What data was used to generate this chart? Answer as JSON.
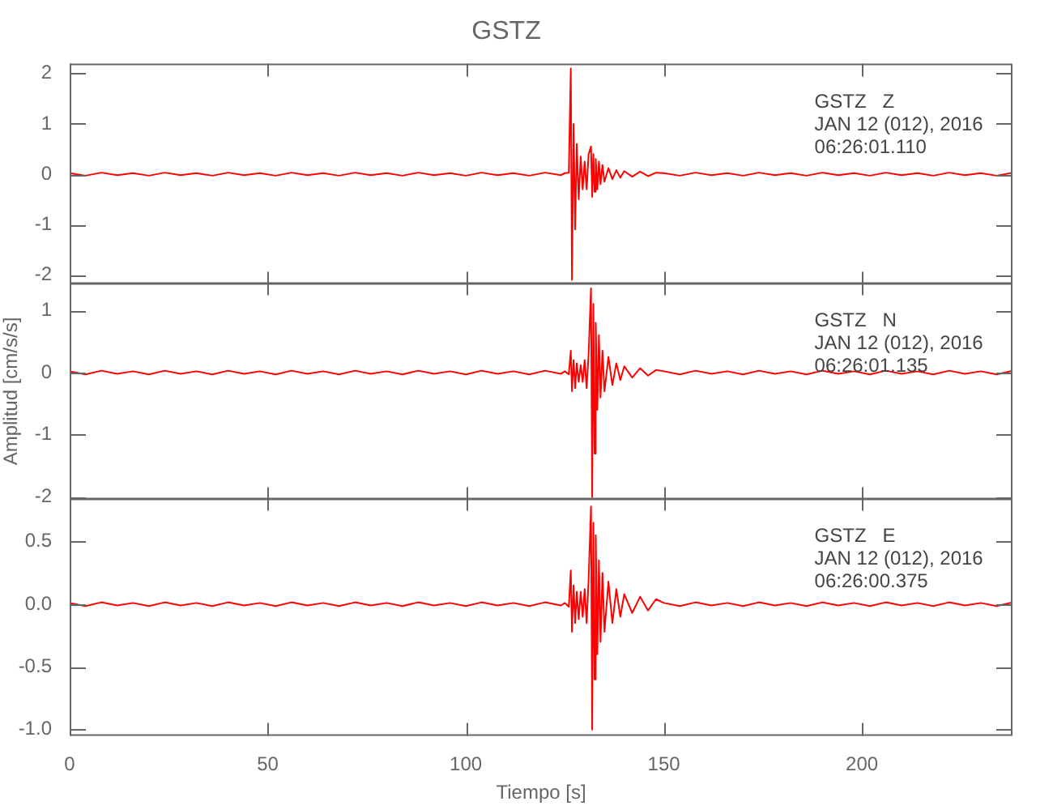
{
  "chart_data": [
    {
      "type": "line",
      "title": "GSTZ",
      "annotations": [
        "GSTZ   Z",
        "JAN 12 (012), 2016",
        "06:26:01.110"
      ],
      "x": [
        0,
        4,
        8,
        12,
        16,
        20,
        24,
        28,
        32,
        36,
        40,
        44,
        48,
        52,
        56,
        60,
        64,
        68,
        72,
        76,
        80,
        84,
        88,
        92,
        96,
        100,
        104,
        108,
        112,
        116,
        120,
        124,
        125,
        126,
        126.5,
        126.8,
        127.2,
        127.6,
        128,
        128.5,
        129,
        129.5,
        130,
        130.5,
        131,
        131.6,
        131.9,
        132.2,
        132.5,
        132.8,
        133.2,
        133.6,
        134,
        134.5,
        135,
        136,
        137,
        138,
        139,
        140,
        142,
        144,
        146,
        148,
        150,
        154,
        158,
        162,
        166,
        170,
        174,
        178,
        182,
        186,
        190,
        194,
        198,
        202,
        206,
        210,
        214,
        218,
        222,
        226,
        230,
        234,
        238
      ],
      "series": [
        {
          "color": "#ff0000",
          "values": [
            0.02,
            -0.03,
            0.03,
            -0.02,
            0.02,
            -0.03,
            0.03,
            -0.02,
            0.02,
            -0.03,
            0.03,
            -0.02,
            0.02,
            -0.03,
            0.03,
            -0.02,
            0.02,
            -0.03,
            0.03,
            -0.02,
            0.02,
            -0.03,
            0.03,
            -0.02,
            0.02,
            -0.03,
            0.03,
            -0.02,
            0.02,
            -0.03,
            0.03,
            -0.02,
            0.02,
            0.03,
            2.1,
            -2.1,
            1.0,
            -1.1,
            0.6,
            -0.5,
            0.35,
            -0.3,
            0.25,
            -0.3,
            0.4,
            0.55,
            -0.45,
            0.4,
            -0.35,
            0.3,
            -0.3,
            0.25,
            -0.2,
            0.18,
            -0.15,
            0.12,
            -0.1,
            0.08,
            -0.07,
            0.06,
            -0.05,
            0.05,
            -0.04,
            0.03,
            0.02,
            -0.03,
            0.03,
            -0.02,
            0.02,
            -0.03,
            0.03,
            -0.02,
            0.02,
            -0.03,
            0.03,
            -0.02,
            0.02,
            -0.03,
            0.03,
            -0.02,
            0.02,
            -0.03,
            0.03,
            -0.02,
            0.02,
            -0.03,
            0.03
          ]
        }
      ],
      "xlim": [
        0,
        238
      ],
      "xticks": [
        0,
        50,
        100,
        150,
        200
      ],
      "ylim": [
        -2.2,
        2.2
      ],
      "yticks": [
        -2,
        -1,
        0,
        1,
        2
      ],
      "tick_labels": "y"
    },
    {
      "type": "line",
      "ylabel": "Amplitud [cm/s/s]",
      "annotations": [
        "GSTZ   N",
        "JAN 12 (012), 2016",
        "06:26:01.135"
      ],
      "x": [
        0,
        4,
        8,
        12,
        16,
        20,
        24,
        28,
        32,
        36,
        40,
        44,
        48,
        52,
        56,
        60,
        64,
        68,
        72,
        76,
        80,
        84,
        88,
        92,
        96,
        100,
        104,
        108,
        112,
        116,
        120,
        124,
        125,
        126,
        126.5,
        126.8,
        127.2,
        127.6,
        128,
        128.5,
        129,
        129.5,
        130,
        130.5,
        131,
        131.6,
        131.9,
        132.2,
        132.5,
        132.8,
        133.2,
        133.6,
        134,
        134.5,
        135,
        136,
        137,
        138,
        139,
        140,
        142,
        144,
        146,
        148,
        150,
        154,
        158,
        162,
        166,
        170,
        174,
        178,
        182,
        186,
        190,
        194,
        198,
        202,
        206,
        210,
        214,
        218,
        222,
        226,
        230,
        234,
        238
      ],
      "series": [
        {
          "color": "#ff0000",
          "values": [
            0.02,
            -0.03,
            0.03,
            -0.02,
            0.02,
            -0.03,
            0.03,
            -0.02,
            0.02,
            -0.03,
            0.03,
            -0.02,
            0.02,
            -0.03,
            0.03,
            -0.02,
            0.02,
            -0.03,
            0.03,
            -0.02,
            0.02,
            -0.03,
            0.03,
            -0.02,
            0.02,
            -0.03,
            0.03,
            -0.02,
            0.02,
            -0.03,
            0.03,
            -0.02,
            0.02,
            -0.03,
            0.35,
            -0.3,
            0.2,
            -0.25,
            0.15,
            -0.15,
            0.12,
            -0.15,
            0.2,
            -0.25,
            0.3,
            1.35,
            -2.0,
            1.1,
            -1.3,
            0.8,
            -0.6,
            0.6,
            -0.4,
            0.35,
            -0.3,
            0.25,
            -0.2,
            0.15,
            -0.12,
            0.1,
            -0.08,
            0.07,
            -0.05,
            0.04,
            0.02,
            -0.03,
            0.03,
            -0.02,
            0.02,
            -0.03,
            0.03,
            -0.02,
            0.02,
            -0.03,
            0.03,
            -0.02,
            0.02,
            -0.03,
            0.03,
            -0.02,
            0.02,
            -0.03,
            0.03,
            -0.02,
            0.02,
            -0.03,
            0.03
          ]
        }
      ],
      "xlim": [
        0,
        238
      ],
      "xticks": [
        0,
        50,
        100,
        150,
        200
      ],
      "ylim": [
        -2.05,
        1.45
      ],
      "yticks": [
        -2,
        -1,
        0,
        1
      ],
      "tick_labels": "y"
    },
    {
      "type": "line",
      "xlabel": "Tiempo [s]",
      "annotations": [
        "GSTZ   E",
        "JAN 12 (012), 2016",
        "06:26:00.375"
      ],
      "x": [
        0,
        4,
        8,
        12,
        16,
        20,
        24,
        28,
        32,
        36,
        40,
        44,
        48,
        52,
        56,
        60,
        64,
        68,
        72,
        76,
        80,
        84,
        88,
        92,
        96,
        100,
        104,
        108,
        112,
        116,
        120,
        124,
        125,
        126,
        126.5,
        126.8,
        127.2,
        127.6,
        128,
        128.5,
        129,
        129.5,
        130,
        130.5,
        131,
        131.6,
        131.9,
        132.2,
        132.5,
        132.8,
        133.2,
        133.6,
        134,
        134.5,
        135,
        136,
        137,
        138,
        139,
        140,
        142,
        144,
        146,
        148,
        150,
        154,
        158,
        162,
        166,
        170,
        174,
        178,
        182,
        186,
        190,
        194,
        198,
        202,
        206,
        210,
        214,
        218,
        222,
        226,
        230,
        234,
        238
      ],
      "series": [
        {
          "color": "#ff0000",
          "values": [
            0.01,
            -0.015,
            0.015,
            -0.01,
            0.01,
            -0.015,
            0.015,
            -0.01,
            0.01,
            -0.015,
            0.015,
            -0.01,
            0.01,
            -0.015,
            0.015,
            -0.01,
            0.01,
            -0.015,
            0.015,
            -0.01,
            0.01,
            -0.015,
            0.015,
            -0.01,
            0.01,
            -0.015,
            0.015,
            -0.01,
            0.01,
            -0.015,
            0.015,
            -0.01,
            0.01,
            -0.02,
            0.27,
            -0.22,
            0.15,
            -0.15,
            0.1,
            -0.12,
            0.1,
            -0.1,
            0.12,
            -0.15,
            0.2,
            0.78,
            -1.0,
            0.65,
            -0.6,
            0.55,
            -0.4,
            0.35,
            -0.3,
            0.25,
            -0.22,
            0.18,
            -0.15,
            0.12,
            -0.1,
            0.08,
            -0.07,
            0.06,
            -0.05,
            0.04,
            0.01,
            -0.015,
            0.015,
            -0.01,
            0.01,
            -0.015,
            0.015,
            -0.01,
            0.01,
            -0.015,
            0.015,
            -0.01,
            0.01,
            -0.015,
            0.015,
            -0.01,
            0.01,
            -0.015,
            0.015,
            -0.01,
            0.01,
            -0.015,
            0.015
          ]
        }
      ],
      "xlim": [
        0,
        238
      ],
      "xticks": [
        0,
        50,
        100,
        150,
        200
      ],
      "ylim": [
        -1.05,
        0.85
      ],
      "yticks": [
        {
          "value": 0.5,
          "label": "0.5"
        },
        {
          "value": 0,
          "label": "0.0"
        },
        {
          "value": -0.5,
          "label": "-0.5"
        },
        {
          "value": -1,
          "label": "-1.0"
        }
      ]
    }
  ]
}
